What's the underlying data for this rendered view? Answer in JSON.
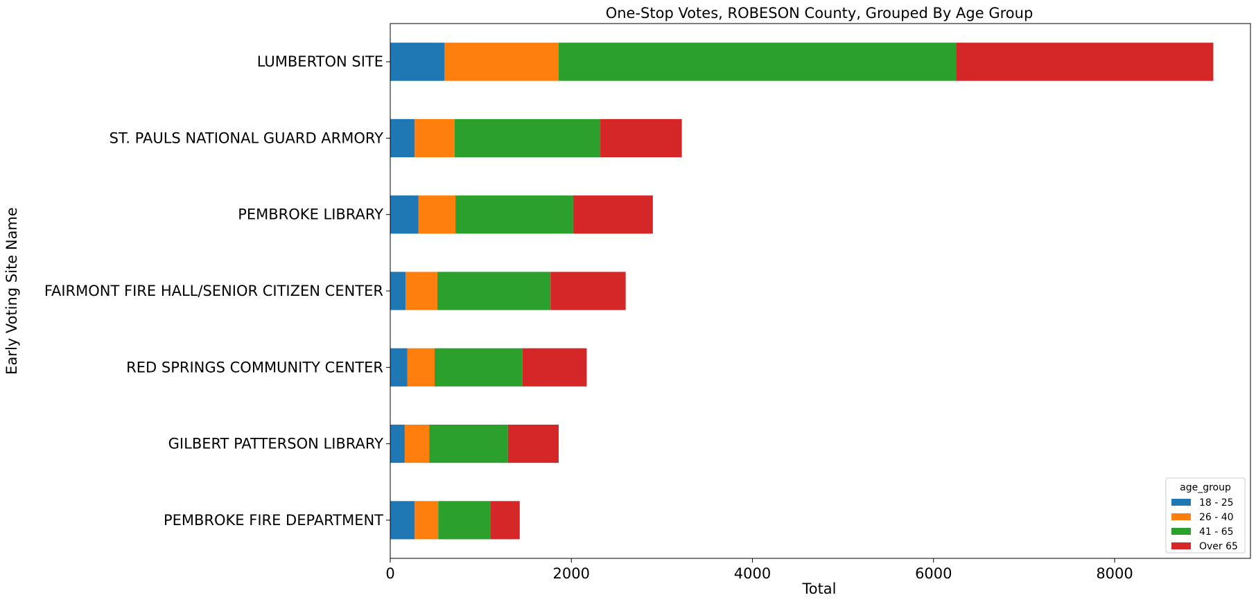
{
  "chart_data": {
    "type": "bar",
    "orientation": "horizontal",
    "stacked": true,
    "title": "One-Stop Votes, ROBESON County, Grouped By Age Group",
    "xlabel": "Total",
    "ylabel": "Early Voting Site Name",
    "xlim": [
      0,
      9500
    ],
    "xticks": [
      0,
      2000,
      4000,
      6000,
      8000
    ],
    "grid": false,
    "legend": {
      "title": "age_group",
      "placement": "lower-right"
    },
    "categories": [
      "LUMBERTON SITE",
      "ST. PAULS NATIONAL GUARD ARMORY",
      "PEMBROKE LIBRARY",
      "FAIRMONT FIRE HALL/SENIOR CITIZEN CENTER",
      "RED SPRINGS COMMUNITY CENTER",
      "GILBERT PATTERSON LIBRARY",
      "PEMBROKE FIRE DEPARTMENT"
    ],
    "series": [
      {
        "name": "18 - 25",
        "color": "#1f77b4",
        "values": [
          600,
          270,
          310,
          170,
          190,
          160,
          270
        ]
      },
      {
        "name": "26 - 40",
        "color": "#ff7f0e",
        "values": [
          1260,
          440,
          410,
          350,
          300,
          270,
          260
        ]
      },
      {
        "name": "41 - 65",
        "color": "#2ca02c",
        "values": [
          4390,
          1610,
          1300,
          1250,
          970,
          870,
          580
        ]
      },
      {
        "name": "Over 65",
        "color": "#d62728",
        "values": [
          2840,
          900,
          880,
          830,
          710,
          560,
          320
        ]
      }
    ]
  }
}
